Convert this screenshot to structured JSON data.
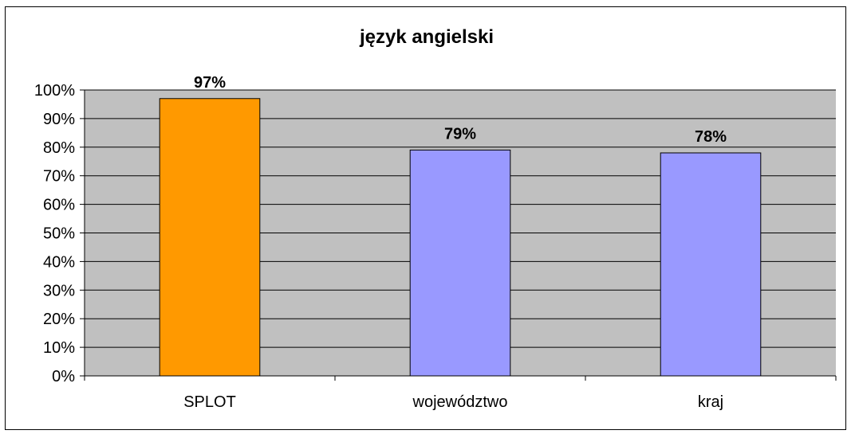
{
  "chart_data": {
    "type": "bar",
    "title": "język angielski",
    "categories": [
      "SPLOT",
      "województwo",
      "kraj"
    ],
    "values": [
      97,
      79,
      78
    ],
    "data_labels": [
      "97%",
      "79%",
      "78%"
    ],
    "bar_colors": [
      "#ff9900",
      "#9999ff",
      "#9999ff"
    ],
    "ylim": [
      0,
      100
    ],
    "yticks": [
      0,
      10,
      20,
      30,
      40,
      50,
      60,
      70,
      80,
      90,
      100
    ],
    "ytick_labels": [
      "0%",
      "10%",
      "20%",
      "30%",
      "40%",
      "50%",
      "60%",
      "70%",
      "80%",
      "90%",
      "100%"
    ],
    "grid": true,
    "plot_background": "#c0c0c0",
    "legend": "none"
  }
}
